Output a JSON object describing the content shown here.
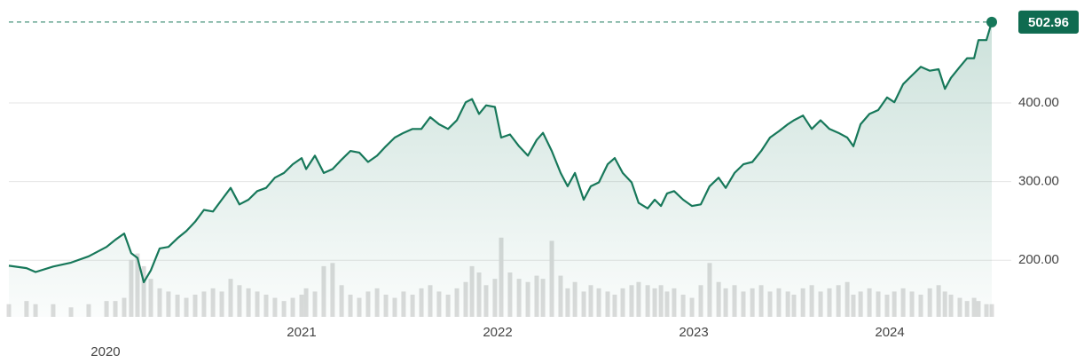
{
  "chart_data": {
    "type": "line",
    "x": [
      2019.507,
      2019.597,
      2019.643,
      2019.733,
      2019.824,
      2019.914,
      2020.005,
      2020.05,
      2020.095,
      2020.131,
      2020.163,
      2020.195,
      2020.231,
      2020.276,
      2020.321,
      2020.367,
      2020.412,
      2020.457,
      2020.502,
      2020.548,
      2020.593,
      2020.638,
      2020.683,
      2020.729,
      2020.774,
      2020.819,
      2020.864,
      2020.91,
      2020.955,
      2021.0,
      2021.023,
      2021.068,
      2021.113,
      2021.158,
      2021.204,
      2021.249,
      2021.294,
      2021.339,
      2021.385,
      2021.43,
      2021.475,
      2021.52,
      2021.566,
      2021.611,
      2021.656,
      2021.701,
      2021.747,
      2021.792,
      2021.837,
      2021.869,
      2021.905,
      2021.941,
      2021.986,
      2022.018,
      2022.063,
      2022.109,
      2022.154,
      2022.199,
      2022.231,
      2022.276,
      2022.321,
      2022.357,
      2022.394,
      2022.439,
      2022.475,
      2022.516,
      2022.561,
      2022.597,
      2022.638,
      2022.683,
      2022.719,
      2022.765,
      2022.801,
      2022.833,
      2022.864,
      2022.9,
      2022.946,
      2022.991,
      2023.036,
      2023.081,
      2023.127,
      2023.163,
      2023.208,
      2023.253,
      2023.299,
      2023.344,
      2023.389,
      2023.434,
      2023.48,
      2023.511,
      2023.557,
      2023.602,
      2023.647,
      2023.692,
      2023.738,
      2023.783,
      2023.814,
      2023.851,
      2023.896,
      2023.941,
      2023.986,
      2024.023,
      2024.068,
      2024.113,
      2024.158,
      2024.204,
      2024.249,
      2024.281,
      2024.312,
      2024.357,
      2024.394,
      2024.43,
      2024.452,
      2024.493,
      2024.52
    ],
    "series": [
      {
        "color": "#17785a",
        "values": [
          193,
          190,
          185,
          192,
          197,
          205,
          217,
          226,
          234,
          209,
          203,
          172,
          187,
          215,
          217,
          228,
          237,
          249,
          264,
          262,
          277,
          292,
          271,
          277,
          288,
          292,
          305,
          311,
          322,
          330,
          316,
          333,
          311,
          316,
          328,
          339,
          337,
          325,
          333,
          345,
          356,
          362,
          367,
          367,
          382,
          373,
          367,
          378,
          401,
          405,
          386,
          397,
          395,
          356,
          360,
          345,
          333,
          353,
          362,
          339,
          311,
          294,
          311,
          277,
          294,
          299,
          322,
          330,
          311,
          299,
          273,
          266,
          277,
          269,
          285,
          288,
          277,
          269,
          271,
          294,
          305,
          292,
          311,
          322,
          325,
          339,
          356,
          364,
          373,
          378,
          384,
          367,
          378,
          367,
          362,
          356,
          345,
          373,
          386,
          391,
          407,
          401,
          424,
          435,
          446,
          441,
          443,
          418,
          432,
          446,
          457,
          457,
          480,
          480,
          502.96
        ]
      },
      {
        "color": "#dcdcdc",
        "axis": "y2",
        "values": [
          4,
          5,
          4,
          4,
          3,
          4,
          5,
          5,
          6,
          18,
          20,
          16,
          12,
          9,
          8,
          7,
          6,
          7,
          8,
          9,
          8,
          12,
          10,
          9,
          8,
          7,
          6,
          5,
          6,
          7,
          9,
          8,
          16,
          17,
          10,
          7,
          6,
          8,
          9,
          7,
          6,
          8,
          7,
          9,
          10,
          8,
          7,
          9,
          11,
          16,
          14,
          10,
          12,
          25,
          14,
          12,
          11,
          13,
          12,
          24,
          13,
          9,
          11,
          8,
          10,
          9,
          8,
          7,
          9,
          10,
          11,
          10,
          9,
          10,
          8,
          9,
          7,
          6,
          10,
          17,
          11,
          9,
          10,
          8,
          9,
          10,
          8,
          9,
          8,
          7,
          9,
          10,
          8,
          9,
          10,
          11,
          7,
          8,
          9,
          8,
          7,
          8,
          9,
          8,
          7,
          9,
          10,
          8,
          7,
          6,
          5,
          6,
          5,
          4,
          4
        ]
      }
    ],
    "xlim": [
      2019.507,
      2024.52
    ],
    "xticks": [
      2020,
      2021,
      2022,
      2023,
      2024
    ],
    "ylim": [
      128,
      531
    ],
    "yticks": [
      {
        "value": 200,
        "label": "200.00"
      },
      {
        "value": 300,
        "label": "300.00"
      },
      {
        "value": 400,
        "label": "400.00"
      }
    ],
    "y2lim": [
      0,
      100
    ],
    "grid": true
  }
}
